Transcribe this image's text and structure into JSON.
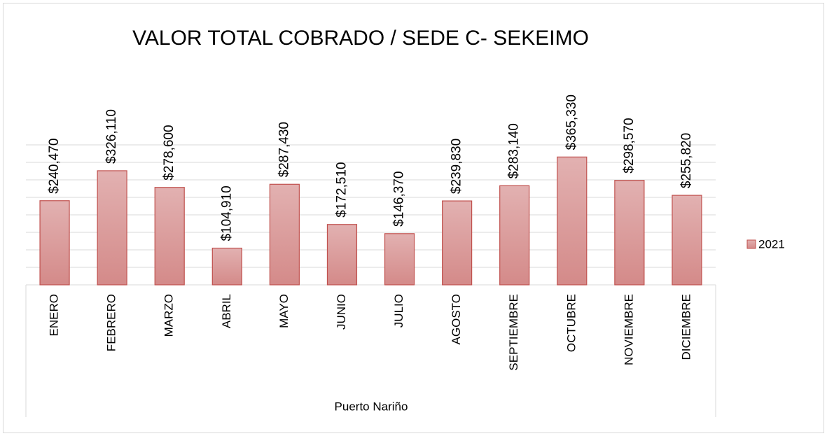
{
  "chart_data": {
    "type": "bar",
    "title": "VALOR TOTAL COBRADO / SEDE C- SEKEIMO",
    "category_group": "Puerto Nariño",
    "categories": [
      "ENERO",
      "FEBRERO",
      "MARZO",
      "ABRIL",
      "MAYO",
      "JUNIO",
      "JULIO",
      "AGOSTO",
      "SEPTIEMBRE",
      "OCTUBRE",
      "NOVIEMBRE",
      "DICIEMBRE"
    ],
    "series": [
      {
        "name": "2021",
        "color": "#d99594",
        "values": [
          240470,
          326110,
          278600,
          104910,
          287430,
          172510,
          146370,
          239830,
          283140,
          365330,
          298570,
          255820
        ],
        "value_labels": [
          "$240,470",
          "$326,110",
          "$278,600",
          "$104,910",
          "$287,430",
          "$172,510",
          "$146,370",
          "$239,830",
          "$283,140",
          "$365,330",
          "$298,570",
          "$255,820"
        ]
      }
    ],
    "ylim": [
      0,
      400000
    ],
    "yticks": [
      0,
      50000,
      100000,
      150000,
      200000,
      250000,
      300000,
      350000,
      400000
    ],
    "grid": true,
    "legend": "right"
  }
}
